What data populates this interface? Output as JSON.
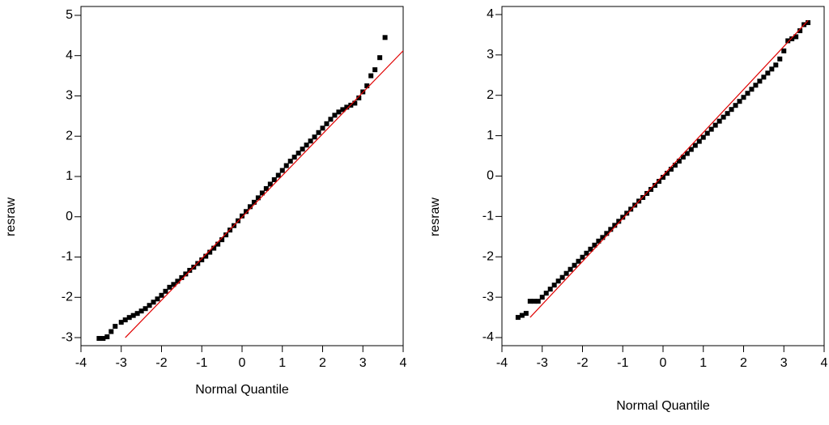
{
  "chart_data": [
    {
      "type": "scatter",
      "y_label": "resraw",
      "x_label": "Normal Quantile",
      "xlim": [
        -4,
        4
      ],
      "ylim": [
        -3.2,
        5.22
      ],
      "xticks": [
        -4,
        -3,
        -2,
        -1,
        0,
        1,
        2,
        3,
        4
      ],
      "yticks": [
        -3,
        -2,
        -1,
        0,
        1,
        2,
        3,
        4,
        5
      ],
      "color": "#000000",
      "x": [
        -3.55,
        -3.45,
        -3.35,
        -3.25,
        -3.15,
        -3.0,
        -2.9,
        -2.8,
        -2.7,
        -2.6,
        -2.5,
        -2.4,
        -2.3,
        -2.2,
        -2.1,
        -2.0,
        -1.9,
        -1.8,
        -1.7,
        -1.6,
        -1.5,
        -1.4,
        -1.3,
        -1.2,
        -1.1,
        -1.0,
        -0.9,
        -0.8,
        -0.7,
        -0.6,
        -0.5,
        -0.4,
        -0.3,
        -0.2,
        -0.1,
        0,
        0.1,
        0.2,
        0.3,
        0.4,
        0.5,
        0.6,
        0.7,
        0.8,
        0.9,
        1.0,
        1.1,
        1.2,
        1.3,
        1.4,
        1.5,
        1.6,
        1.7,
        1.8,
        1.9,
        2.0,
        2.1,
        2.2,
        2.3,
        2.4,
        2.5,
        2.6,
        2.7,
        2.8,
        2.9,
        3.0,
        3.1,
        3.2,
        3.3,
        3.42,
        3.55
      ],
      "values": [
        -3.02,
        -3.02,
        -2.98,
        -2.85,
        -2.72,
        -2.62,
        -2.56,
        -2.5,
        -2.45,
        -2.4,
        -2.34,
        -2.28,
        -2.2,
        -2.12,
        -2.04,
        -1.95,
        -1.85,
        -1.75,
        -1.68,
        -1.6,
        -1.51,
        -1.42,
        -1.33,
        -1.25,
        -1.16,
        -1.07,
        -0.98,
        -0.88,
        -0.78,
        -0.68,
        -0.57,
        -0.45,
        -0.33,
        -0.22,
        -0.1,
        0.02,
        0.13,
        0.25,
        0.36,
        0.47,
        0.59,
        0.7,
        0.81,
        0.92,
        1.03,
        1.15,
        1.27,
        1.38,
        1.48,
        1.58,
        1.68,
        1.78,
        1.88,
        1.98,
        2.09,
        2.2,
        2.31,
        2.42,
        2.52,
        2.6,
        2.66,
        2.72,
        2.77,
        2.82,
        2.95,
        3.1,
        3.25,
        3.5,
        3.65,
        3.95,
        4.45
      ],
      "ref_line": {
        "x": [
          -2.9,
          4
        ],
        "values": [
          -3.0,
          4.12
        ],
        "color": "#e00000"
      }
    },
    {
      "type": "scatter",
      "y_label": "resraw",
      "x_label": "Normal Quantile",
      "xlim": [
        -4,
        4
      ],
      "ylim": [
        -4.2,
        4.2
      ],
      "xticks": [
        -4,
        -3,
        -2,
        -1,
        0,
        1,
        2,
        3,
        4
      ],
      "yticks": [
        -4,
        -3,
        -2,
        -1,
        0,
        1,
        2,
        3,
        4
      ],
      "color": "#000000",
      "x": [
        -3.6,
        -3.5,
        -3.4,
        -3.3,
        -3.2,
        -3.1,
        -3.0,
        -2.9,
        -2.8,
        -2.7,
        -2.6,
        -2.5,
        -2.4,
        -2.3,
        -2.2,
        -2.1,
        -2.0,
        -1.9,
        -1.8,
        -1.7,
        -1.6,
        -1.5,
        -1.4,
        -1.3,
        -1.2,
        -1.1,
        -1.0,
        -0.9,
        -0.8,
        -0.7,
        -0.6,
        -0.5,
        -0.4,
        -0.3,
        -0.2,
        -0.1,
        0,
        0.1,
        0.2,
        0.3,
        0.4,
        0.5,
        0.6,
        0.7,
        0.8,
        0.9,
        1.0,
        1.1,
        1.2,
        1.3,
        1.4,
        1.5,
        1.6,
        1.7,
        1.8,
        1.9,
        2.0,
        2.1,
        2.2,
        2.3,
        2.4,
        2.5,
        2.6,
        2.7,
        2.8,
        2.9,
        3.0,
        3.1,
        3.2,
        3.3,
        3.4,
        3.5,
        3.6
      ],
      "values": [
        -3.5,
        -3.45,
        -3.4,
        -3.1,
        -3.1,
        -3.1,
        -3.0,
        -2.9,
        -2.8,
        -2.7,
        -2.6,
        -2.51,
        -2.41,
        -2.31,
        -2.21,
        -2.11,
        -2.01,
        -1.91,
        -1.81,
        -1.71,
        -1.61,
        -1.52,
        -1.42,
        -1.32,
        -1.22,
        -1.12,
        -1.02,
        -0.92,
        -0.82,
        -0.72,
        -0.62,
        -0.53,
        -0.43,
        -0.33,
        -0.23,
        -0.13,
        -0.03,
        0.07,
        0.17,
        0.27,
        0.37,
        0.47,
        0.56,
        0.66,
        0.76,
        0.86,
        0.96,
        1.06,
        1.16,
        1.26,
        1.36,
        1.46,
        1.55,
        1.65,
        1.75,
        1.85,
        1.95,
        2.05,
        2.15,
        2.25,
        2.35,
        2.45,
        2.55,
        2.65,
        2.75,
        2.9,
        3.1,
        3.35,
        3.4,
        3.45,
        3.6,
        3.75,
        3.8
      ],
      "ref_line": {
        "x": [
          -3.3,
          3.6
        ],
        "values": [
          -3.5,
          3.85
        ],
        "color": "#e00000"
      }
    }
  ]
}
